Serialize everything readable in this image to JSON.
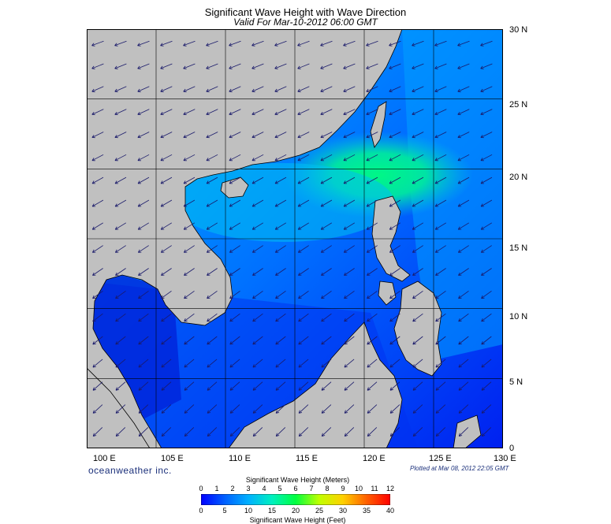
{
  "header": {
    "title": "Significant Wave Height with Wave Direction",
    "subtitle": "Valid For Mar-10-2012 06:00 GMT"
  },
  "map": {
    "lat_labels": [
      "30 N",
      "25 N",
      "20 N",
      "15 N",
      "10 N",
      "5 N",
      "0"
    ],
    "lon_labels": [
      "100 E",
      "105 E",
      "110 E",
      "115 E",
      "120 E",
      "125 E",
      "130 E"
    ],
    "lat_range": [
      0,
      30
    ],
    "lon_range": [
      100,
      130
    ],
    "land_color": "#c0c0c0",
    "grid": true
  },
  "footer": {
    "brand": "oceanweather inc.",
    "plotted": "Plotted at Mar 08, 2012 22:05 GMT"
  },
  "colorbar": {
    "title_meters": "Significant Wave Height (Meters)",
    "title_feet": "Significant Wave Height (Feet)",
    "meter_ticks": [
      "0",
      "1",
      "2",
      "3",
      "4",
      "5",
      "6",
      "7",
      "8",
      "9",
      "10",
      "11",
      "12"
    ],
    "feet_ticks": [
      "0",
      "5",
      "10",
      "15",
      "20",
      "25",
      "30",
      "35",
      "40"
    ],
    "colors": [
      "#0000ff",
      "#0060ff",
      "#00b0ff",
      "#00f0c0",
      "#00ff40",
      "#c0ff00",
      "#ffd000",
      "#ff6000",
      "#ff0000"
    ]
  }
}
